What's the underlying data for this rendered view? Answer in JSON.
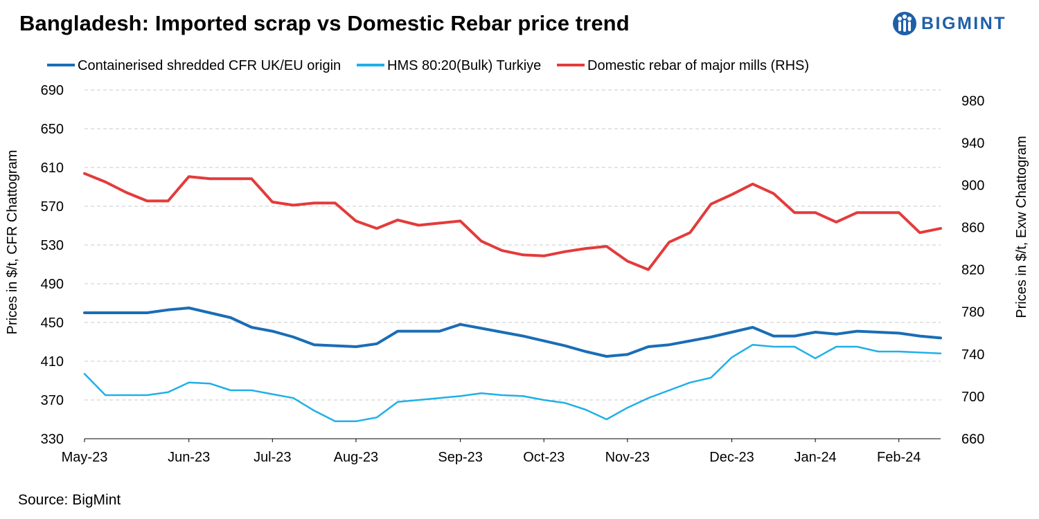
{
  "title": "Bangladesh: Imported scrap vs Domestic Rebar price trend",
  "logo": {
    "text": "BIGMINT",
    "icon": "bigmint-people-icon"
  },
  "source": "Source: BigMint",
  "colors": {
    "dark_blue": "#1a6db5",
    "light_blue": "#1fb0e8",
    "red": "#e33b3b",
    "logo_blue": "#1f5fa8",
    "grid": "#c8c8c8"
  },
  "chart_data": {
    "type": "line",
    "title": "Bangladesh: Imported scrap vs Domestic Rebar price trend",
    "ylabel_left": "Prices in $/t, CFR Chattogram",
    "ylabel_right": "Prices in $/t, Exw Chattogram",
    "ylim_left": [
      330,
      690
    ],
    "ylim_right": [
      660,
      990
    ],
    "yticks_left": [
      330,
      370,
      410,
      450,
      490,
      530,
      570,
      610,
      650,
      690
    ],
    "yticks_right": [
      660,
      700,
      740,
      780,
      820,
      860,
      900,
      940,
      980
    ],
    "xtick_labels": [
      {
        "label": "May-23",
        "index": 0
      },
      {
        "label": "Jun-23",
        "index": 5
      },
      {
        "label": "Jul-23",
        "index": 9
      },
      {
        "label": "Aug-23",
        "index": 13
      },
      {
        "label": "Sep-23",
        "index": 18
      },
      {
        "label": "Oct-23",
        "index": 22
      },
      {
        "label": "Nov-23",
        "index": 26
      },
      {
        "label": "Dec-23",
        "index": 31
      },
      {
        "label": "Jan-24",
        "index": 35
      },
      {
        "label": "Feb-24",
        "index": 39
      }
    ],
    "grid": true,
    "legend_position": "top",
    "series": [
      {
        "name": "Containerised shredded CFR UK/EU origin",
        "axis": "left",
        "color": "#1a6db5",
        "width": 4,
        "values": [
          460,
          460,
          460,
          460,
          463,
          465,
          460,
          455,
          445,
          441,
          435,
          427,
          426,
          425,
          428,
          441,
          441,
          441,
          448,
          444,
          440,
          436,
          431,
          426,
          420,
          415,
          417,
          425,
          427,
          431,
          435,
          440,
          445,
          436,
          436,
          440,
          438,
          441,
          440,
          439,
          436,
          434
        ]
      },
      {
        "name": "HMS 80:20(Bulk) Turkiye",
        "axis": "left",
        "color": "#1fb0e8",
        "width": 2.5,
        "values": [
          397,
          375,
          375,
          375,
          378,
          388,
          387,
          380,
          380,
          376,
          372,
          359,
          348,
          348,
          352,
          368,
          370,
          372,
          374,
          377,
          375,
          374,
          370,
          367,
          360,
          350,
          362,
          372,
          380,
          388,
          393,
          414,
          427,
          425,
          425,
          413,
          425,
          425,
          420,
          420,
          419,
          418
        ]
      },
      {
        "name": "Domestic rebar of major mills (RHS)",
        "axis": "right",
        "color": "#e33b3b",
        "width": 4,
        "values": [
          911,
          903,
          893,
          885,
          885,
          908,
          906,
          906,
          906,
          884,
          881,
          883,
          883,
          866,
          859,
          867,
          862,
          864,
          866,
          847,
          838,
          834,
          833,
          837,
          840,
          842,
          828,
          820,
          846,
          855,
          882,
          891,
          901,
          892,
          874,
          874,
          865,
          874,
          874,
          874,
          855,
          859
        ]
      }
    ]
  }
}
